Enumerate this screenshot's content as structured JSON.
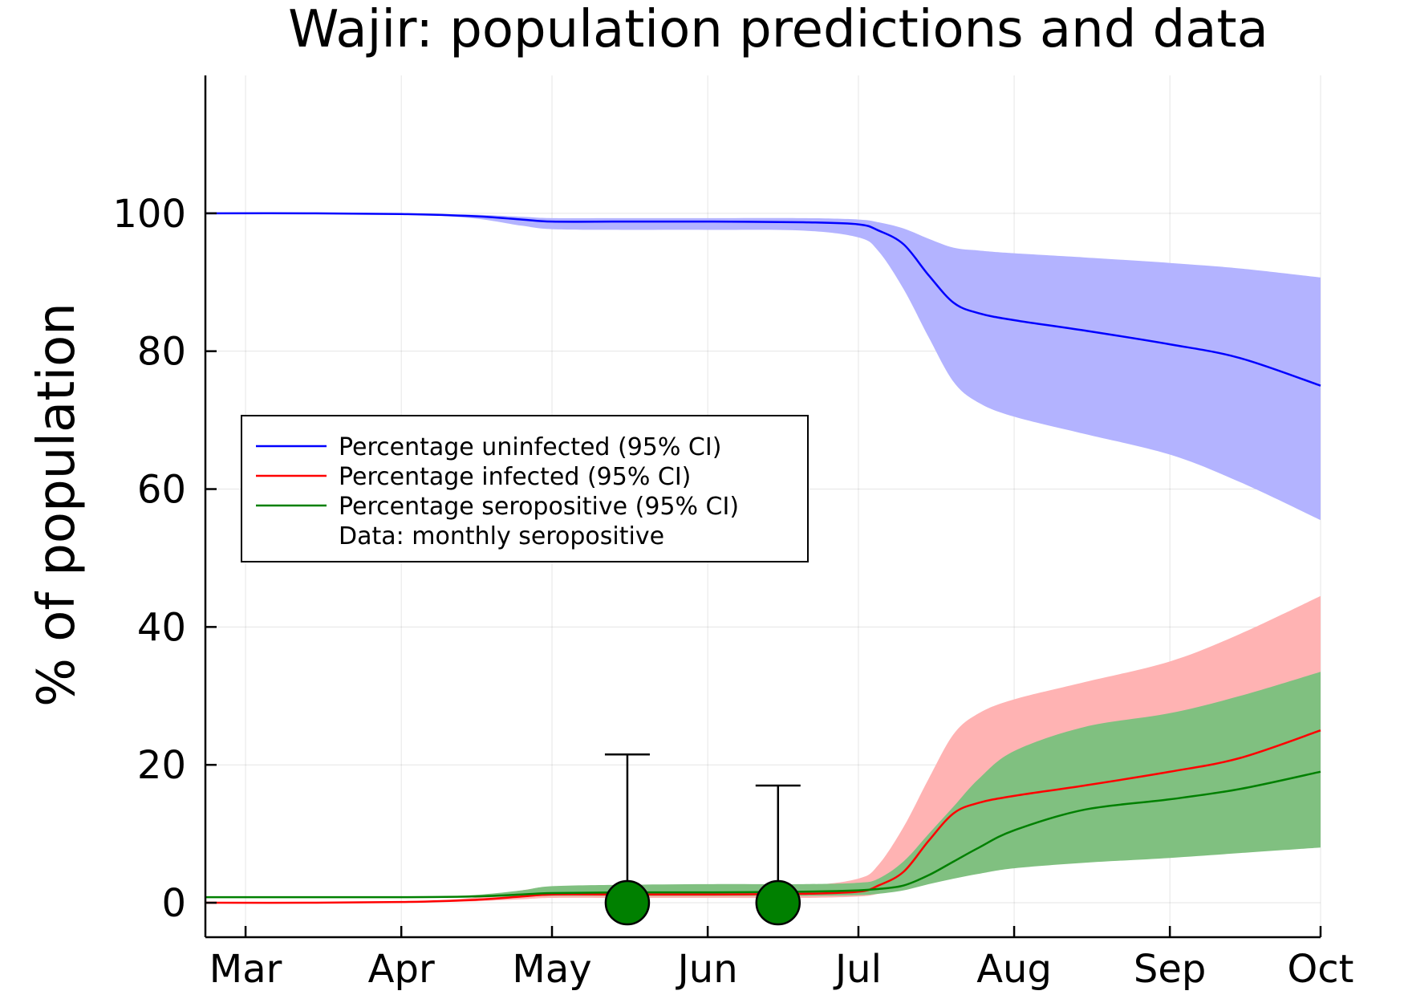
{
  "chart_data": {
    "type": "line",
    "title": "Wajir: population predictions and data",
    "xlabel": "",
    "ylabel": "% of population",
    "xlim": [
      "2020-02-22",
      "2020-10-01"
    ],
    "ylim": [
      -5,
      120
    ],
    "x_ticks": [
      {
        "date": "2020-03-01",
        "label": "Mar"
      },
      {
        "date": "2020-04-01",
        "label": "Apr"
      },
      {
        "date": "2020-05-01",
        "label": "May"
      },
      {
        "date": "2020-06-01",
        "label": "Jun"
      },
      {
        "date": "2020-07-01",
        "label": "Jul"
      },
      {
        "date": "2020-08-01",
        "label": "Aug"
      },
      {
        "date": "2020-09-01",
        "label": "Sep"
      },
      {
        "date": "2020-10-01",
        "label": "Oct"
      }
    ],
    "y_ticks": [
      0,
      20,
      40,
      60,
      80,
      100
    ],
    "grid": true,
    "legend_position": "middle-left",
    "series": [
      {
        "name": "Percentage uninfected (95% CI)",
        "color": "#0000ff",
        "band_color": "#b3b3ff",
        "x": [
          "2020-02-22",
          "2020-03-15",
          "2020-04-01",
          "2020-04-15",
          "2020-04-25",
          "2020-05-01",
          "2020-05-15",
          "2020-06-01",
          "2020-06-20",
          "2020-07-01",
          "2020-07-05",
          "2020-07-10",
          "2020-07-15",
          "2020-07-20",
          "2020-07-25",
          "2020-08-01",
          "2020-08-15",
          "2020-09-01",
          "2020-09-15",
          "2020-10-01"
        ],
        "y": [
          100,
          100,
          99.9,
          99.6,
          99.1,
          98.8,
          98.8,
          98.8,
          98.7,
          98.4,
          97.5,
          95.5,
          91,
          87,
          85.5,
          84.5,
          83,
          81,
          79,
          75
        ],
        "lower": [
          100,
          100,
          99.9,
          99.3,
          98.2,
          97.7,
          97.6,
          97.6,
          97.5,
          96.5,
          94.5,
          89,
          82,
          75.5,
          72.5,
          70.5,
          68,
          65,
          61,
          55.5
        ],
        "upper": [
          100,
          100,
          99.9,
          99.8,
          99.5,
          99.3,
          99.3,
          99.3,
          99.3,
          99.1,
          98.7,
          97.8,
          96.3,
          95,
          94.6,
          94.2,
          93.6,
          92.8,
          92,
          90.7
        ]
      },
      {
        "name": "Percentage infected (95% CI)",
        "color": "#ff0000",
        "band_color": "#ffb3b3",
        "x": [
          "2020-02-22",
          "2020-03-15",
          "2020-04-01",
          "2020-04-15",
          "2020-04-25",
          "2020-05-01",
          "2020-05-15",
          "2020-06-01",
          "2020-06-20",
          "2020-07-01",
          "2020-07-05",
          "2020-07-10",
          "2020-07-15",
          "2020-07-20",
          "2020-07-25",
          "2020-08-01",
          "2020-08-15",
          "2020-09-01",
          "2020-09-15",
          "2020-10-01"
        ],
        "y": [
          0,
          0,
          0.1,
          0.4,
          0.9,
          1.2,
          1.2,
          1.2,
          1.3,
          1.6,
          2.5,
          4.5,
          9,
          13,
          14.5,
          15.5,
          17,
          19,
          21,
          25
        ],
        "lower": [
          0,
          0,
          0.1,
          0.2,
          0.5,
          0.7,
          0.7,
          0.7,
          0.7,
          0.9,
          1.3,
          2.2,
          4,
          5.5,
          6.3,
          7,
          7.5,
          8,
          8.5,
          9.5
        ],
        "upper": [
          0,
          0,
          0.1,
          0.7,
          1.8,
          2.3,
          2.4,
          2.4,
          2.5,
          3.5,
          5.5,
          11,
          18,
          24.5,
          27.5,
          29.5,
          32,
          35,
          39,
          44.5
        ]
      },
      {
        "name": "Percentage seropositive (95% CI)",
        "color": "#008000",
        "band_color": "#80c080",
        "x": [
          "2020-02-22",
          "2020-03-15",
          "2020-04-01",
          "2020-04-15",
          "2020-04-25",
          "2020-05-01",
          "2020-05-15",
          "2020-06-01",
          "2020-06-20",
          "2020-07-01",
          "2020-07-05",
          "2020-07-10",
          "2020-07-15",
          "2020-07-20",
          "2020-07-25",
          "2020-08-01",
          "2020-08-15",
          "2020-09-01",
          "2020-09-15",
          "2020-10-01"
        ],
        "y": [
          0.8,
          0.8,
          0.8,
          0.9,
          1.2,
          1.4,
          1.5,
          1.5,
          1.6,
          1.8,
          2.0,
          2.5,
          4,
          6,
          8,
          10.5,
          13.5,
          15,
          16.5,
          19
        ],
        "lower": [
          0.8,
          0.8,
          0.8,
          0.8,
          0.9,
          1.0,
          1.0,
          1.0,
          1.0,
          1.1,
          1.3,
          1.8,
          2.7,
          3.5,
          4.2,
          5,
          5.8,
          6.5,
          7.2,
          8
        ],
        "upper": [
          0.8,
          0.8,
          0.8,
          1.1,
          1.8,
          2.4,
          2.6,
          2.7,
          2.7,
          2.9,
          3.5,
          6,
          10,
          14,
          18,
          22,
          25.5,
          27.5,
          30,
          33.5
        ]
      }
    ],
    "data_points": {
      "name": "Data: monthly seropositive",
      "color": "#008000",
      "points": [
        {
          "date": "2020-05-16",
          "value": 0,
          "upper": 21.5
        },
        {
          "date": "2020-06-15",
          "value": 0,
          "upper": 17
        }
      ]
    }
  }
}
